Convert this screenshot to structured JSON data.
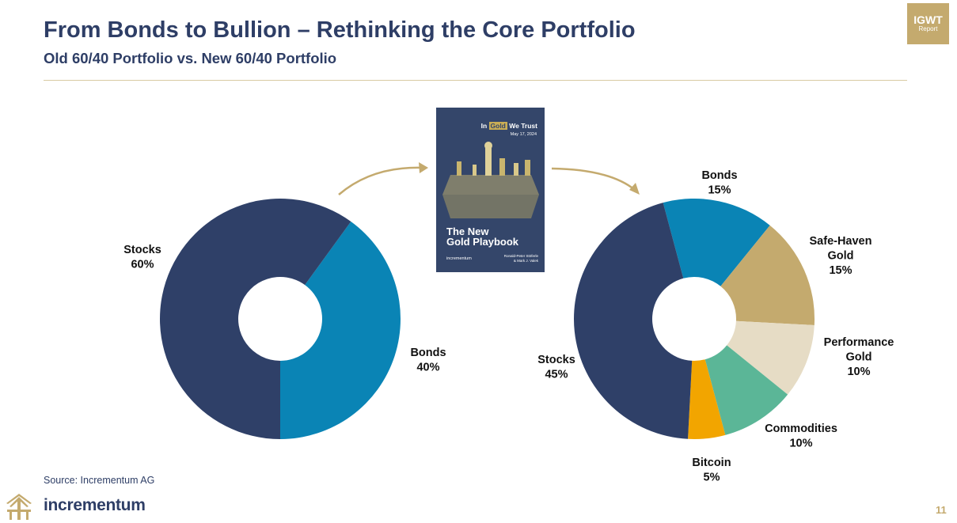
{
  "header": {
    "title": "From Bonds to Bullion – Rethinking the Core Portfolio",
    "subtitle": "Old 60/40 Portfolio vs. New 60/40 Portfolio"
  },
  "badge": {
    "line1": "IGWT",
    "line2": "Report"
  },
  "book": {
    "brand_pre": "In",
    "brand_gold": "Gold",
    "brand_post": "We Trust",
    "date": "May 17, 2024",
    "title_line1": "The New",
    "title_line2": "Gold Playbook",
    "publisher": "incrementum",
    "authors_line1": "Ronald-Peter Stöferle",
    "authors_line2": "& Mark J. Valek"
  },
  "footer": {
    "source": "Source: Incrementum AG",
    "brand": "incrementum",
    "page_number": "11"
  },
  "colors": {
    "navy": "#2e3e66",
    "gold_accent": "#c4aa6e"
  },
  "chart_data": [
    {
      "type": "pie",
      "title": "Old 60/40 Portfolio",
      "series": [
        {
          "name": "Stocks",
          "value": 60,
          "label": "60%",
          "color": "#2f4068"
        },
        {
          "name": "Bonds",
          "value": 40,
          "label": "40%",
          "color": "#0a84b5"
        }
      ]
    },
    {
      "type": "pie",
      "title": "New 60/40 Portfolio",
      "series": [
        {
          "name": "Bonds",
          "value": 15,
          "label": "15%",
          "color": "#0a84b5"
        },
        {
          "name": "Safe-Haven Gold",
          "value": 15,
          "label": "15%",
          "color": "#c4aa6e"
        },
        {
          "name": "Performance Gold",
          "value": 10,
          "label": "10%",
          "color": "#e6dcc5"
        },
        {
          "name": "Commodities",
          "value": 10,
          "label": "10%",
          "color": "#5bb697"
        },
        {
          "name": "Bitcoin",
          "value": 5,
          "label": "5%",
          "color": "#f2a500"
        },
        {
          "name": "Stocks",
          "value": 45,
          "label": "45%",
          "color": "#2f4068"
        }
      ]
    }
  ]
}
